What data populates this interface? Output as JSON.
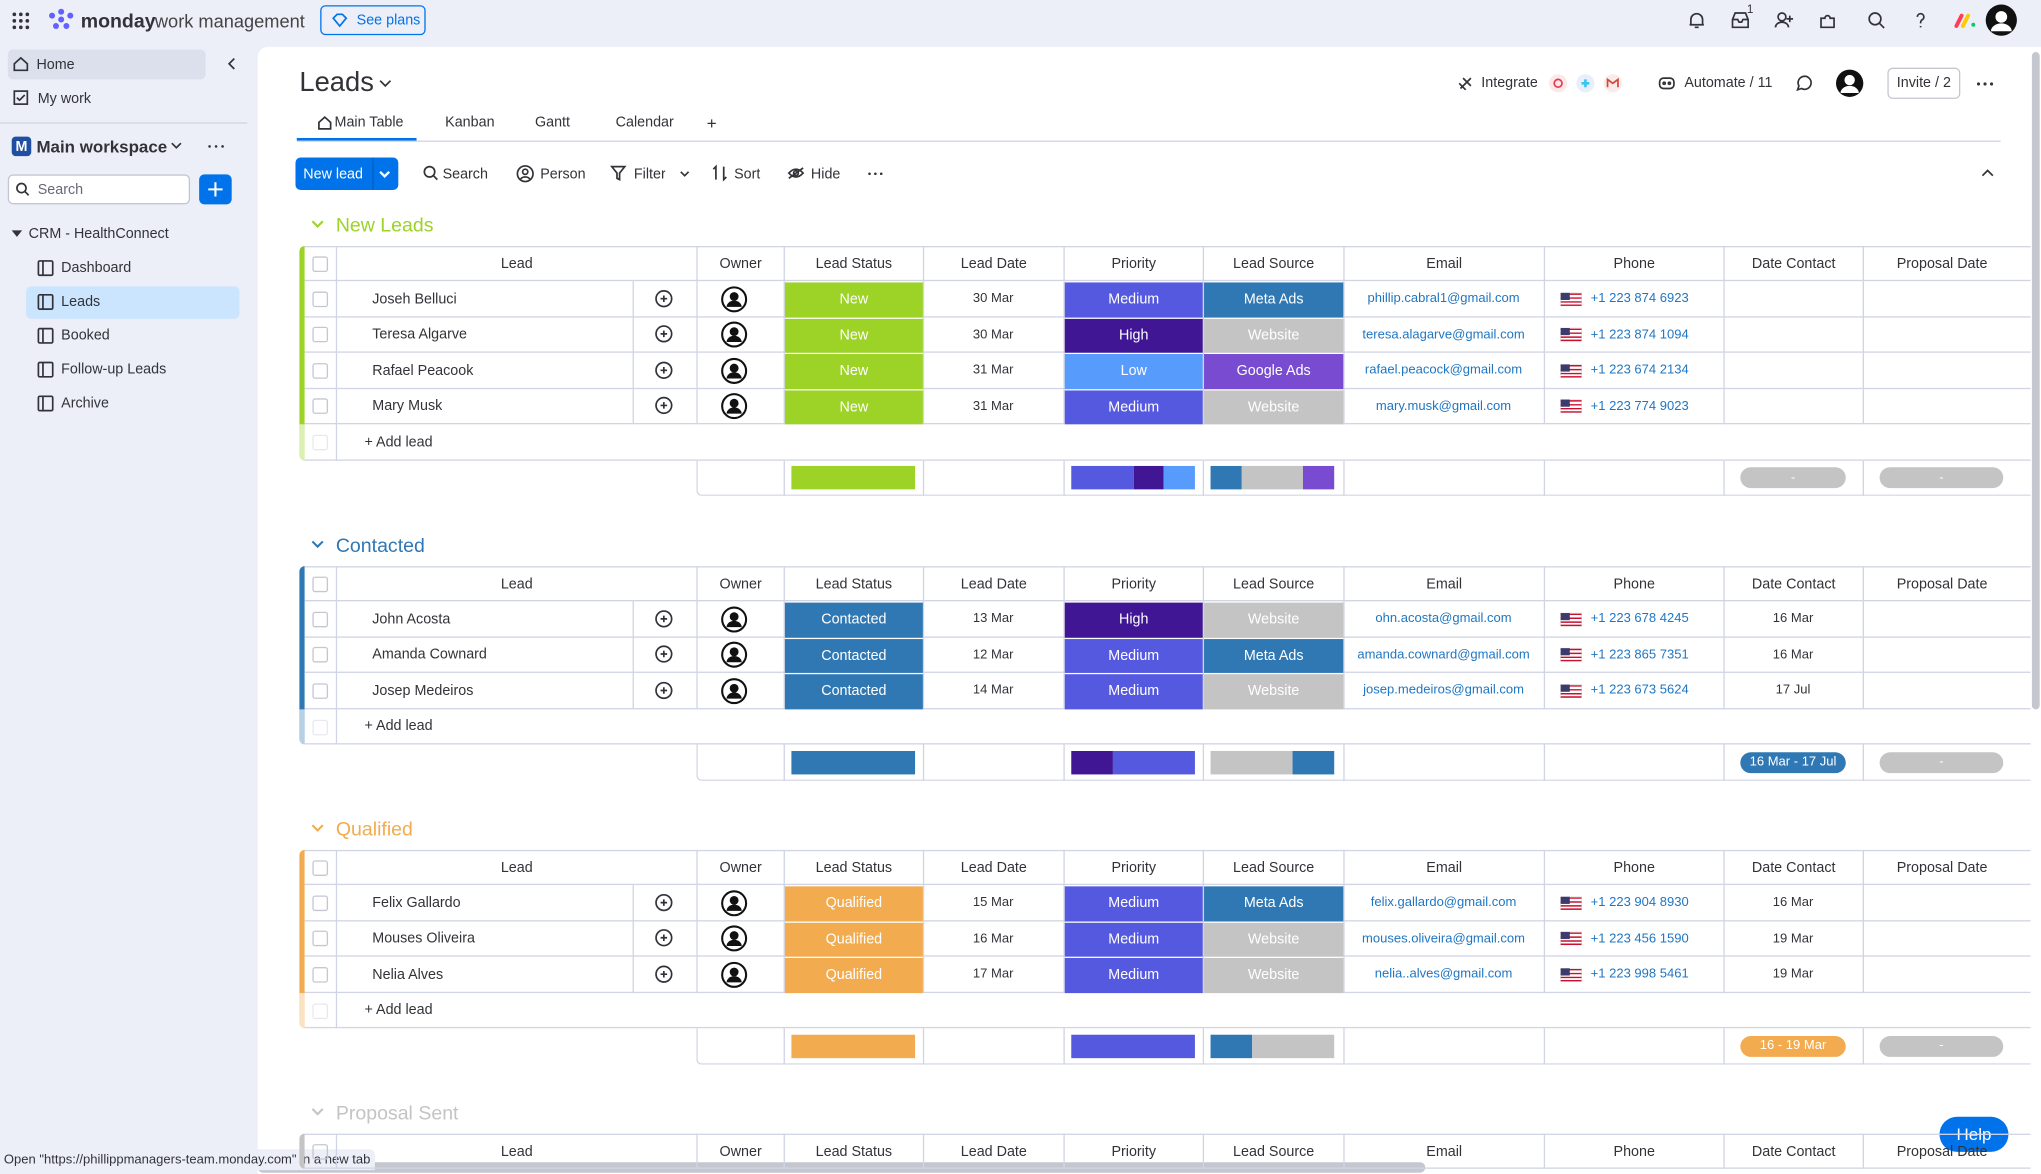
{
  "topbar": {
    "brand": "monday",
    "product": "work management",
    "see_plans": "See plans",
    "inbox_count": "1"
  },
  "sidebar": {
    "home": "Home",
    "my_work": "My work",
    "workspace_initial": "M",
    "workspace": "Main workspace",
    "search": "Search",
    "folder": "CRM - HealthConnect",
    "items": [
      "Dashboard",
      "Leads",
      "Booked",
      "Follow-up Leads",
      "Archive"
    ]
  },
  "board": {
    "title": "Leads",
    "integrate": "Integrate",
    "automate": "Automate / 11",
    "invite": "Invite / 2",
    "views": [
      "Main Table",
      "Kanban",
      "Gantt",
      "Calendar"
    ],
    "add_view": "+"
  },
  "toolbar": {
    "new_item": "New lead",
    "search": "Search",
    "person": "Person",
    "filter": "Filter",
    "sort": "Sort",
    "hide": "Hide"
  },
  "columns": [
    "Lead",
    "Owner",
    "Lead Status",
    "Lead Date",
    "Priority",
    "Lead Source",
    "Email",
    "Phone",
    "Date Contact",
    "Proposal Date"
  ],
  "label_colors": {
    "New": "#9cd326",
    "Contacted": "#2f78b4",
    "Qualified": "#f2ac4f",
    "Medium": "#5559df",
    "High": "#401694",
    "Low": "#579bfc",
    "Meta Ads": "#2f78b4",
    "Website": "#c4c4c4",
    "Google Ads": "#784bd1"
  },
  "groups": [
    {
      "name": "New Leads",
      "color": "#9cd326",
      "add": "+ Add lead",
      "rows": [
        {
          "lead": "Joseh Belluci",
          "status": "New",
          "lead_date": "30 Mar",
          "priority": "Medium",
          "source": "Meta Ads",
          "email": "phillip.cabral1@gmail.com",
          "phone": "+1 223 874 6923"
        },
        {
          "lead": "Teresa Algarve",
          "status": "New",
          "lead_date": "30 Mar",
          "priority": "High",
          "source": "Website",
          "email": "teresa.alagarve@gmail.com",
          "phone": "+1 223 874 1094"
        },
        {
          "lead": "Rafael Peacook",
          "status": "New",
          "lead_date": "31 Mar",
          "priority": "Low",
          "source": "Google Ads",
          "email": "rafael.peacock@gmail.com",
          "phone": "+1 223 674 2134"
        },
        {
          "lead": "Mary Musk",
          "status": "New",
          "lead_date": "31 Mar",
          "priority": "Medium",
          "source": "Website",
          "email": "mary.musk@gmail.com",
          "phone": "+1 223 774 9023"
        }
      ],
      "summary": {
        "date_contact": {
          "text": "-",
          "color": "#c4c4c4"
        },
        "proposal": {
          "text": "-",
          "color": "#c4c4c4"
        }
      }
    },
    {
      "name": "Contacted",
      "color": "#2f78b4",
      "add": "+ Add lead",
      "rows": [
        {
          "lead": "John Acosta",
          "status": "Contacted",
          "lead_date": "13 Mar",
          "priority": "High",
          "source": "Website",
          "email": "ohn.acosta@gmail.com",
          "phone": "+1 223 678 4245",
          "date_contact": "16 Mar"
        },
        {
          "lead": "Amanda Cownard",
          "status": "Contacted",
          "lead_date": "12 Mar",
          "priority": "Medium",
          "source": "Meta Ads",
          "email": "amanda.cownard@gmail.com",
          "phone": "+1 223 865 7351",
          "date_contact": "16 Mar"
        },
        {
          "lead": "Josep Medeiros",
          "status": "Contacted",
          "lead_date": "14 Mar",
          "priority": "Medium",
          "source": "Website",
          "email": "josep.medeiros@gmail.com",
          "phone": "+1 223 673 5624",
          "date_contact": "17 Jul"
        }
      ],
      "summary": {
        "date_contact": {
          "text": "16 Mar - 17 Jul",
          "color": "#2f78b4"
        },
        "proposal": {
          "text": "-",
          "color": "#c4c4c4"
        }
      }
    },
    {
      "name": "Qualified",
      "color": "#f2ac4f",
      "add": "+ Add lead",
      "rows": [
        {
          "lead": "Felix Gallardo",
          "status": "Qualified",
          "lead_date": "15 Mar",
          "priority": "Medium",
          "source": "Meta Ads",
          "email": "felix.gallardo@gmail.com",
          "phone": "+1 223 904 8930",
          "date_contact": "16 Mar"
        },
        {
          "lead": "Mouses Oliveira",
          "status": "Qualified",
          "lead_date": "16 Mar",
          "priority": "Medium",
          "source": "Website",
          "email": "mouses.oliveira@gmail.com",
          "phone": "+1 223 456 1590",
          "date_contact": "19 Mar"
        },
        {
          "lead": "Nelia Alves",
          "status": "Qualified",
          "lead_date": "17 Mar",
          "priority": "Medium",
          "source": "Website",
          "email": "nelia..alves@gmail.com",
          "phone": "+1 223 998 5461",
          "date_contact": "19 Mar"
        }
      ],
      "summary": {
        "date_contact": {
          "text": "16 - 19 Mar",
          "color": "#f2ac4f"
        },
        "proposal": {
          "text": "-",
          "color": "#c4c4c4"
        }
      }
    },
    {
      "name": "Proposal Sent",
      "color": "#c4c4c4"
    }
  ],
  "status_link": "Open \"https://phillippmanagers-team.monday.com\" in a new tab",
  "help": "Help"
}
